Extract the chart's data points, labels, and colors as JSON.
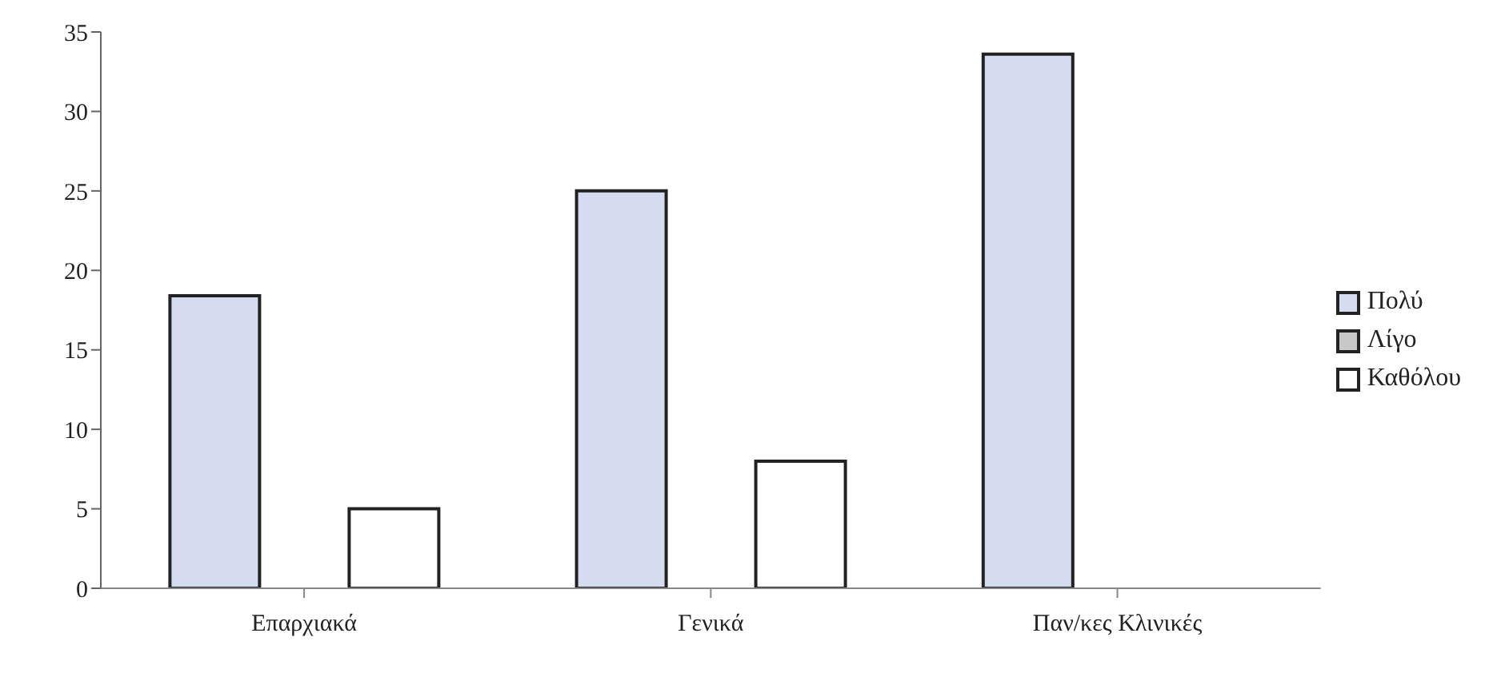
{
  "chart_data": {
    "type": "bar",
    "categories": [
      "Επαρχιακά",
      "Γενικά",
      "Παν/κες Κλινικές"
    ],
    "series": [
      {
        "name": "Πολύ",
        "color": "#d6dcf0",
        "values": [
          18.4,
          25,
          33.6
        ]
      },
      {
        "name": "Λίγο",
        "color": "#c8c8c8",
        "values": [
          0,
          0,
          0
        ]
      },
      {
        "name": "Καθόλου",
        "color": "#ffffff",
        "values": [
          5,
          8,
          0
        ]
      }
    ],
    "ylim": [
      0,
      35
    ],
    "yticks": [
      0,
      5,
      10,
      15,
      20,
      25,
      30,
      35
    ],
    "grid": false,
    "legend": "right"
  }
}
